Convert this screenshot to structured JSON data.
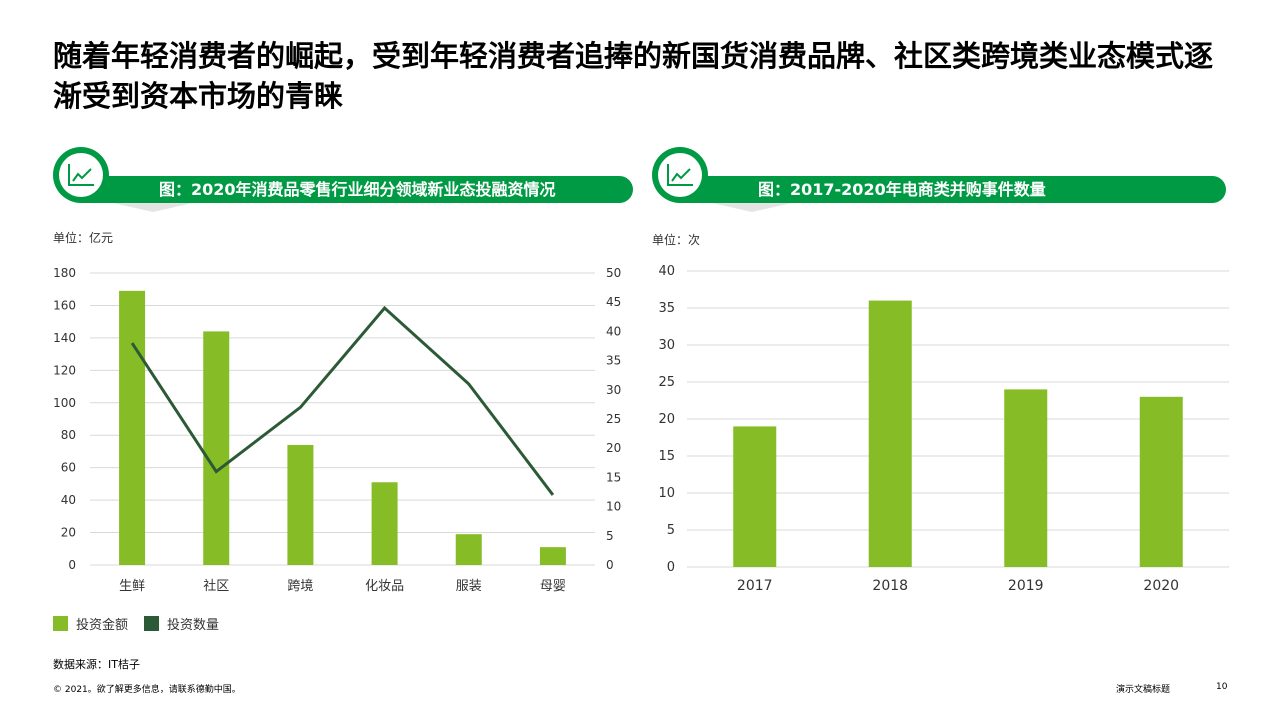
{
  "title": "随着年轻消费者的崛起，受到年轻消费者追捧的新国货消费品牌、社区类跨境类业态模式逐渐受到资本市场的青睐",
  "colors": {
    "brand_green": "#009a44",
    "bar_green": "#86bc25",
    "line_dark_green": "#2d5a36",
    "grid": "#d9d9d9"
  },
  "left_panel": {
    "banner_title": "图：2020年消费品零售行业细分领域新业态投融资情况",
    "icon": "line-chart-icon",
    "unit": "单位：亿元"
  },
  "right_panel": {
    "banner_title": "图：2017-2020年电商类并购事件数量",
    "icon": "line-chart-icon",
    "unit": "单位：次"
  },
  "legend": {
    "amount": "投资金额",
    "count": "投资数量"
  },
  "source": "数据来源：IT桔子",
  "footer": {
    "copyright": "© 2021。欲了解更多信息，请联系德勤中国。",
    "doc_title": "演示文稿标题",
    "page": "10"
  },
  "chart_data": [
    {
      "type": "bar",
      "categories": [
        "生鲜",
        "社区",
        "跨境",
        "化妆品",
        "服装",
        "母婴"
      ],
      "series": [
        {
          "name": "投资金额",
          "type": "bar",
          "axis": "left",
          "values": [
            169,
            144,
            74,
            51,
            19,
            11
          ]
        },
        {
          "name": "投资数量",
          "type": "line",
          "axis": "right",
          "values": [
            38,
            16,
            27,
            44,
            31,
            12
          ]
        }
      ],
      "y_left": {
        "min": 0,
        "max": 180,
        "step": 20
      },
      "y_right": {
        "min": 0,
        "max": 50,
        "step": 5
      },
      "grid": true,
      "legend_position": "bottom-left"
    },
    {
      "type": "bar",
      "categories": [
        "2017",
        "2018",
        "2019",
        "2020"
      ],
      "values": [
        19,
        36,
        24,
        23
      ],
      "ylim": [
        0,
        40
      ],
      "y_step": 5,
      "grid": true
    }
  ]
}
